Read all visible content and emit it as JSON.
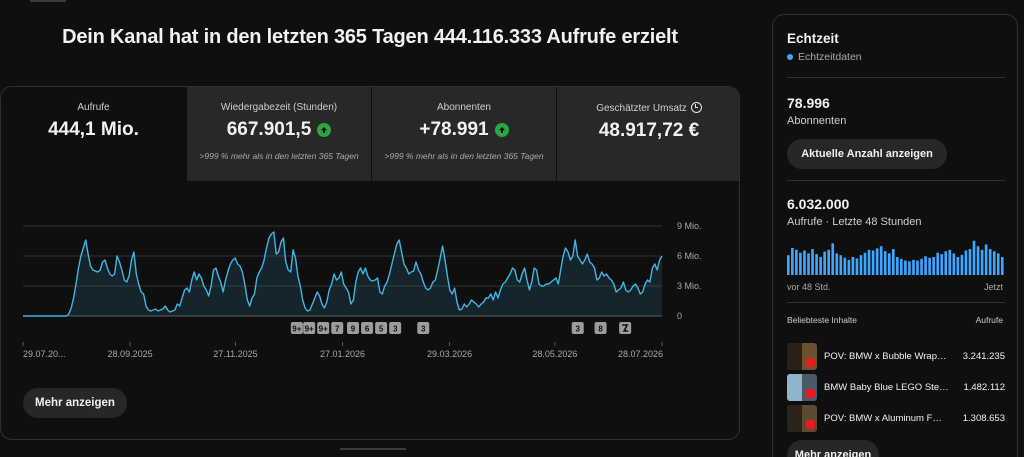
{
  "headline": "Dein Kanal hat in den letzten 365 Tagen 444.116.333 Aufrufe erzielt",
  "metrics": [
    {
      "label": "Aufrufe",
      "value": "444,1 Mio.",
      "sub": ""
    },
    {
      "label": "Wiedergabezeit (Stunden)",
      "value": "667.901,5",
      "sub": ">999 % mehr als in den letzten 365 Tagen"
    },
    {
      "label": "Abonnenten",
      "value": "+78.991",
      "sub": ">999 % mehr als in den letzten 365 Tagen"
    },
    {
      "label": "Geschätzter Umsatz",
      "value": "48.917,72 €",
      "sub": ""
    }
  ],
  "more_button": "Mehr anzeigen",
  "colors": {
    "accent": "#3ea6ff",
    "up": "#2ba640",
    "line": "#41b6e6"
  },
  "chart_data": {
    "type": "area",
    "title": "",
    "xlabel": "",
    "ylabel": "",
    "ylim": [
      0,
      9
    ],
    "y_unit": "Mio.",
    "y_ticks": [
      "9 Mio.",
      "6 Mio.",
      "3 Mio.",
      "0"
    ],
    "x_ticks": [
      "29.07.20...",
      "28.09.2025",
      "27.11.2025",
      "27.01.2026",
      "29.03.2026",
      "28.05.2026",
      "28.07.2026"
    ],
    "x_start": "2025-07-29",
    "x_end": "2026-07-28",
    "series": [
      {
        "values": [
          0,
          0,
          0,
          0,
          0,
          0,
          0,
          0,
          0,
          0,
          0,
          0,
          0,
          0,
          0,
          0,
          0,
          0,
          0,
          0.2,
          0.8,
          1.8,
          3.2,
          4.8,
          6,
          6.8,
          7.6,
          6.2,
          5,
          4.6,
          4.5,
          4.4,
          4.6,
          5.4,
          5.6,
          4.8,
          4.2,
          4,
          4.2,
          6,
          5.4,
          4.6,
          3.6,
          3.4,
          4,
          5.6,
          6.4,
          4.2,
          3.2,
          2.4,
          2.2,
          1,
          0.6,
          0.5,
          0.6,
          0.7,
          0.5,
          0.6,
          0.7,
          1,
          0.6,
          0.4,
          0.5,
          0.6,
          1.2,
          1,
          1.8,
          2.6,
          2.8,
          2.4,
          3.6,
          4.4,
          3.6,
          4.2,
          3.8,
          3,
          2.6,
          2,
          3,
          4.6,
          4.8,
          4,
          3.4,
          2.4,
          3.6,
          4.5,
          5.2,
          5.6,
          5.8,
          5.2,
          5,
          4.4,
          3.2,
          1.6,
          1,
          1.8,
          2.2,
          3.8,
          4.4,
          4.8,
          5.6,
          6.8,
          7.8,
          8.2,
          8.4,
          6.2,
          6.4,
          7.4,
          7.8,
          5.4,
          4.6,
          4.4,
          6.6,
          5.8,
          4,
          3,
          1.6,
          0.8,
          0.5,
          0.6,
          1.2,
          1.8,
          2.4,
          2,
          1.2,
          0.8,
          1.4,
          2.6,
          3.2,
          4.2,
          3.6,
          3.8,
          4.4,
          3.2,
          2.8,
          2.4,
          1.2,
          1.6,
          3.4,
          4.4,
          4.8,
          4.2,
          4.8,
          4,
          3.6,
          3.5,
          3.6,
          3.8,
          2.4,
          2.2,
          3,
          3.4,
          4.2,
          5.2,
          6.2,
          7.2,
          7.6,
          6.4,
          5.2,
          4.8,
          4.2,
          4.4,
          4.5,
          5.4,
          4.6,
          4.2,
          3.4,
          2.8,
          2.6,
          2.8,
          3.4,
          3.6,
          4.6,
          5.8,
          7,
          5.6,
          4,
          2.6,
          2.2,
          2.8,
          1.4,
          0.6,
          0.7,
          1.2,
          0.9,
          1.2,
          1.6,
          1.4,
          1.2,
          0.9,
          1.2,
          1.4,
          1.8,
          1.8,
          2.2,
          1.6,
          2.4,
          1.8,
          2.6,
          3.2,
          3.4,
          3.8,
          4.2,
          4.8,
          4.6,
          3.6,
          3.4,
          4.2,
          4.8,
          3.6,
          2.6,
          3.4,
          4.8,
          4.6,
          3.2,
          3,
          3,
          3.2,
          3.2,
          3.4,
          3.6,
          3.8,
          3.2,
          4.6,
          6,
          6.8,
          6.4,
          5.6,
          6,
          7.6,
          6,
          5.6,
          5.2,
          5.6,
          6.2,
          5.4,
          5.2,
          4.8,
          3.6,
          3.8,
          4.4,
          4,
          4.2,
          3.8,
          3.6,
          3.2,
          2.4,
          2.6,
          2.8,
          3.4,
          2.6,
          2.4,
          2.6,
          3,
          3.2,
          2.8,
          2.2,
          2.4,
          3.2,
          3.6,
          3.4,
          4.8,
          5.2,
          4.6,
          5.6,
          6
        ]
      }
    ],
    "annotations": [
      {
        "label": "9+",
        "date": "2026-01-01"
      },
      {
        "label": "9+",
        "date": "2026-01-08"
      },
      {
        "label": "9+",
        "date": "2026-01-16"
      },
      {
        "label": "7",
        "date": "2026-01-24"
      },
      {
        "label": "9",
        "date": "2026-02-02"
      },
      {
        "label": "6",
        "date": "2026-02-10"
      },
      {
        "label": "5",
        "date": "2026-02-18"
      },
      {
        "label": "3",
        "date": "2026-02-26"
      },
      {
        "label": "3",
        "date": "2026-03-14"
      },
      {
        "label": "3",
        "date": "2026-06-10"
      },
      {
        "label": "8",
        "date": "2026-06-23"
      },
      {
        "label": "shorts-icon",
        "date": "2026-07-07"
      }
    ]
  },
  "realtime": {
    "title": "Echtzeit",
    "live_label": "Echtzeitdaten",
    "subs_value": "78.996",
    "subs_label": "Abonnenten",
    "count_button": "Aktuelle Anzahl anzeigen",
    "views_value": "6.032.000",
    "views_label": "Aufrufe · Letzte 48 Stunden",
    "axis_left": "vor 48 Std.",
    "axis_right": "Jetzt",
    "bars": [
      0.55,
      0.75,
      0.7,
      0.62,
      0.68,
      0.6,
      0.72,
      0.58,
      0.5,
      0.65,
      0.7,
      0.88,
      0.6,
      0.55,
      0.48,
      0.42,
      0.5,
      0.46,
      0.55,
      0.62,
      0.7,
      0.68,
      0.74,
      0.8,
      0.66,
      0.6,
      0.72,
      0.5,
      0.45,
      0.4,
      0.38,
      0.42,
      0.4,
      0.45,
      0.52,
      0.48,
      0.5,
      0.62,
      0.58,
      0.66,
      0.7,
      0.6,
      0.5,
      0.56,
      0.68,
      0.72,
      0.95,
      0.8,
      0.7,
      0.85,
      0.72,
      0.66,
      0.6,
      0.5
    ],
    "popular_header": "Beliebteste Inhalte",
    "popular_header_right": "Aufrufe",
    "popular": [
      {
        "title": "POV: BMW x Bubble Wrap…",
        "views": "3.241.235",
        "thumb": "#6a5130"
      },
      {
        "title": "BMW Baby Blue LEGO Ste…",
        "views": "1.482.112",
        "thumb": "#4a5a68"
      },
      {
        "title": "POV: BMW x Aluminum F…",
        "views": "1.308.653",
        "thumb": "#5e4a32"
      }
    ],
    "more_button": "Mehr anzeigen"
  }
}
